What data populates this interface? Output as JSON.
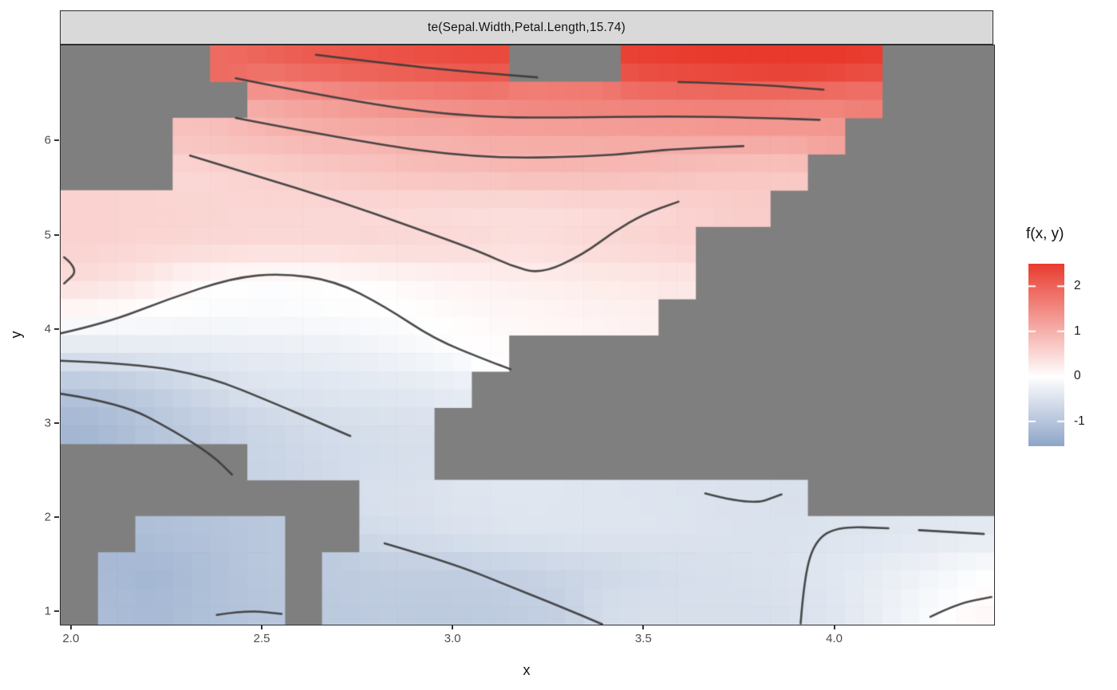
{
  "strip": {
    "title": "te(Sepal.Width,Petal.Length,15.74)"
  },
  "axes": {
    "x": {
      "label": "x",
      "range": [
        1.971,
        4.417
      ],
      "ticks": [
        2.0,
        2.5,
        3.0,
        3.5,
        4.0
      ],
      "tick_labels": [
        "2.0",
        "2.5",
        "3.0",
        "3.5",
        "4.0"
      ]
    },
    "y": {
      "label": "y",
      "range": [
        0.866,
        7.02
      ],
      "ticks": [
        1,
        2,
        3,
        4,
        5,
        6
      ],
      "tick_labels": [
        "1",
        "2",
        "3",
        "4",
        "5",
        "6"
      ]
    }
  },
  "legend": {
    "title": "f(x, y)",
    "domain_top": 2.5,
    "domain_bottom": -1.55,
    "ticks": [
      2,
      1,
      0,
      -1
    ],
    "tick_labels": [
      "2",
      "1",
      "0",
      "-1"
    ]
  },
  "colors": {
    "high": "#e8392c",
    "mid": "#ffffff",
    "low": "#8aa2c6",
    "na": "#7f7f7f",
    "contour": "#3b3b3b",
    "strip_bg": "#d9d9d9",
    "panel_border": "#2e2e2e",
    "axis_text": "#4d4d4d",
    "color_domain": [
      -1.6,
      2.55
    ]
  },
  "chart_data": {
    "type": "heatmap",
    "title": "te(Sepal.Width,Petal.Length,15.74)",
    "xlabel": "x",
    "ylabel": "y",
    "legend_label": "f(x, y)",
    "xlim": [
      1.971,
      4.417
    ],
    "ylim": [
      0.866,
      7.02
    ],
    "fill_range": [
      -1.55,
      2.5
    ],
    "grid": {
      "ncols": 25,
      "nrows": 16,
      "x_extent": [
        1.971,
        4.417
      ],
      "y_extent": [
        0.866,
        7.02
      ],
      "note": "rows top-to-bottom (y=7 down to y=0.9); null = NA (grey)",
      "values": [
        [
          null,
          null,
          null,
          null,
          1.9,
          2.0,
          2.1,
          2.15,
          2.2,
          2.25,
          2.3,
          2.35,
          null,
          null,
          null,
          2.45,
          2.5,
          2.55,
          2.6,
          2.65,
          2.6,
          2.5,
          null,
          null,
          null
        ],
        [
          null,
          null,
          null,
          null,
          null,
          1.15,
          1.25,
          1.35,
          1.45,
          1.5,
          1.55,
          1.6,
          1.65,
          1.7,
          1.7,
          1.72,
          1.75,
          1.75,
          1.75,
          1.72,
          1.7,
          1.65,
          null,
          null,
          null
        ],
        [
          null,
          null,
          null,
          0.8,
          0.85,
          0.9,
          0.95,
          1.0,
          1.0,
          1.05,
          1.05,
          1.1,
          1.1,
          1.1,
          1.12,
          1.15,
          1.15,
          1.18,
          1.2,
          1.2,
          1.2,
          null,
          null,
          null,
          null
        ],
        [
          null,
          null,
          null,
          0.5,
          0.55,
          0.6,
          0.65,
          0.7,
          0.75,
          0.8,
          0.82,
          0.85,
          0.9,
          0.9,
          0.88,
          0.85,
          0.8,
          0.75,
          0.72,
          0.7,
          null,
          null,
          null,
          null,
          null
        ],
        [
          0.58,
          0.56,
          0.55,
          0.54,
          0.53,
          0.52,
          0.51,
          0.5,
          0.48,
          0.46,
          0.44,
          0.42,
          0.41,
          0.44,
          0.48,
          0.5,
          0.55,
          0.6,
          0.65,
          null,
          null,
          null,
          null,
          null,
          null
        ],
        [
          0.58,
          0.56,
          0.54,
          0.52,
          0.51,
          0.5,
          0.5,
          0.51,
          0.52,
          0.51,
          0.5,
          0.46,
          0.43,
          0.47,
          0.5,
          0.55,
          0.58,
          null,
          null,
          null,
          null,
          null,
          null,
          null,
          null
        ],
        [
          0.45,
          0.38,
          0.25,
          0.1,
          0.02,
          -0.02,
          -0.02,
          0.0,
          0.05,
          0.1,
          0.15,
          0.18,
          0.2,
          0.23,
          0.26,
          0.28,
          0.3,
          null,
          null,
          null,
          null,
          null,
          null,
          null,
          null
        ],
        [
          0.02,
          -0.02,
          -0.05,
          -0.08,
          -0.08,
          -0.08,
          -0.07,
          -0.05,
          -0.02,
          0.0,
          0.05,
          0.08,
          0.1,
          0.12,
          0.15,
          0.18,
          null,
          null,
          null,
          null,
          null,
          null,
          null,
          null,
          null
        ],
        [
          -0.45,
          -0.42,
          -0.4,
          -0.38,
          -0.35,
          -0.32,
          -0.3,
          -0.28,
          -0.22,
          -0.15,
          -0.05,
          0.02,
          null,
          null,
          null,
          null,
          null,
          null,
          null,
          null,
          null,
          null,
          null,
          null,
          null
        ],
        [
          -1.0,
          -0.95,
          -0.85,
          -0.7,
          -0.55,
          -0.48,
          -0.45,
          -0.42,
          -0.4,
          -0.38,
          -0.35,
          null,
          null,
          null,
          null,
          null,
          null,
          null,
          null,
          null,
          null,
          null,
          null,
          null,
          null
        ],
        [
          -1.25,
          -1.15,
          -1.0,
          -0.9,
          -0.8,
          -0.7,
          -0.62,
          -0.58,
          -0.55,
          -0.52,
          null,
          null,
          null,
          null,
          null,
          null,
          null,
          null,
          null,
          null,
          null,
          null,
          null,
          null,
          null
        ],
        [
          null,
          null,
          null,
          null,
          null,
          -0.75,
          -0.68,
          -0.62,
          -0.58,
          -0.55,
          null,
          null,
          null,
          null,
          null,
          null,
          null,
          null,
          null,
          null,
          null,
          null,
          null,
          null,
          null
        ],
        [
          null,
          null,
          null,
          null,
          null,
          null,
          null,
          null,
          -0.52,
          -0.5,
          -0.46,
          -0.44,
          -0.43,
          -0.44,
          -0.45,
          -0.46,
          -0.47,
          -0.49,
          -0.5,
          -0.52,
          null,
          null,
          null,
          null,
          null
        ],
        [
          null,
          null,
          -1.1,
          -1.05,
          -1.0,
          -0.95,
          null,
          null,
          -0.62,
          -0.58,
          -0.52,
          -0.48,
          -0.45,
          -0.44,
          -0.44,
          -0.45,
          -0.46,
          -0.48,
          -0.5,
          -0.5,
          -0.48,
          -0.45,
          -0.42,
          -0.4,
          -0.38
        ],
        [
          null,
          -1.2,
          -1.25,
          -1.15,
          -1.05,
          -0.95,
          null,
          -0.9,
          -0.85,
          -0.85,
          -0.85,
          -0.82,
          -0.78,
          -0.72,
          -0.68,
          -0.62,
          -0.58,
          -0.55,
          -0.52,
          -0.48,
          -0.42,
          -0.35,
          -0.28,
          -0.18,
          -0.05
        ],
        [
          null,
          -1.15,
          -1.2,
          -1.12,
          -1.05,
          -0.98,
          null,
          -0.92,
          -0.88,
          -0.9,
          -0.9,
          -0.88,
          -0.85,
          -0.8,
          -0.6,
          -0.55,
          -0.55,
          -0.55,
          -0.55,
          -0.52,
          -0.45,
          -0.35,
          -0.2,
          -0.05,
          0.08
        ]
      ]
    },
    "contours": [
      {
        "level": 2,
        "points": [
          [
            2.64,
            6.92
          ],
          [
            2.82,
            6.83
          ],
          [
            3.01,
            6.75
          ],
          [
            3.22,
            6.68
          ]
        ]
      },
      {
        "level": 2,
        "points": [
          [
            3.59,
            6.63
          ],
          [
            3.78,
            6.61
          ],
          [
            3.97,
            6.55
          ]
        ]
      },
      {
        "level": 1.5,
        "points": [
          [
            2.43,
            6.67
          ],
          [
            2.76,
            6.4
          ],
          [
            3.05,
            6.26
          ],
          [
            3.28,
            6.25
          ],
          [
            3.57,
            6.27
          ],
          [
            3.8,
            6.25
          ],
          [
            3.96,
            6.23
          ]
        ]
      },
      {
        "level": 1,
        "points": [
          [
            2.43,
            6.25
          ],
          [
            2.76,
            5.99
          ],
          [
            3.07,
            5.82
          ],
          [
            3.38,
            5.84
          ],
          [
            3.57,
            5.92
          ],
          [
            3.76,
            5.95
          ]
        ]
      },
      {
        "level": 0.5,
        "points": [
          [
            2.31,
            5.85
          ],
          [
            2.48,
            5.64
          ],
          [
            2.69,
            5.38
          ],
          [
            2.9,
            5.08
          ],
          [
            3.07,
            4.83
          ],
          [
            3.15,
            4.68
          ],
          [
            3.23,
            4.59
          ],
          [
            3.34,
            4.8
          ],
          [
            3.42,
            5.04
          ],
          [
            3.5,
            5.23
          ],
          [
            3.59,
            5.36
          ]
        ]
      },
      {
        "level": 0.5,
        "points": [
          [
            1.98,
            4.77
          ],
          [
            2.02,
            4.64
          ],
          [
            1.98,
            4.49
          ]
        ]
      },
      {
        "level": 0,
        "points": [
          [
            1.97,
            3.96
          ],
          [
            2.09,
            4.07
          ],
          [
            2.25,
            4.32
          ],
          [
            2.42,
            4.55
          ],
          [
            2.55,
            4.6
          ],
          [
            2.69,
            4.52
          ],
          [
            2.82,
            4.25
          ],
          [
            2.95,
            3.9
          ],
          [
            3.09,
            3.67
          ],
          [
            3.15,
            3.58
          ]
        ]
      },
      {
        "level": -0.5,
        "points": [
          [
            1.97,
            3.67
          ],
          [
            2.17,
            3.64
          ],
          [
            2.36,
            3.5
          ],
          [
            2.53,
            3.22
          ],
          [
            2.65,
            3.01
          ],
          [
            2.73,
            2.87
          ]
        ]
      },
      {
        "level": -1,
        "points": [
          [
            1.97,
            3.32
          ],
          [
            2.13,
            3.22
          ],
          [
            2.27,
            2.92
          ],
          [
            2.37,
            2.66
          ],
          [
            2.42,
            2.46
          ]
        ]
      },
      {
        "level": -1,
        "points": [
          [
            2.38,
            0.97
          ],
          [
            2.46,
            1.02
          ],
          [
            2.55,
            0.98
          ]
        ]
      },
      {
        "level": -0.5,
        "points": [
          [
            2.82,
            1.73
          ],
          [
            2.99,
            1.53
          ],
          [
            3.15,
            1.27
          ],
          [
            3.28,
            1.06
          ],
          [
            3.39,
            0.87
          ]
        ]
      },
      {
        "level": -0.5,
        "points": [
          [
            3.66,
            2.26
          ],
          [
            3.78,
            2.13
          ],
          [
            3.86,
            2.25
          ]
        ]
      },
      {
        "level": -0.5,
        "points": [
          [
            3.91,
            0.88
          ],
          [
            3.92,
            1.4
          ],
          [
            3.95,
            1.77
          ],
          [
            4.01,
            1.91
          ],
          [
            4.14,
            1.89
          ]
        ]
      },
      {
        "level": -0.5,
        "points": [
          [
            4.22,
            1.87
          ],
          [
            4.39,
            1.83
          ]
        ]
      },
      {
        "level": 0,
        "points": [
          [
            4.25,
            0.95
          ],
          [
            4.32,
            1.09
          ],
          [
            4.41,
            1.16
          ]
        ]
      }
    ]
  }
}
